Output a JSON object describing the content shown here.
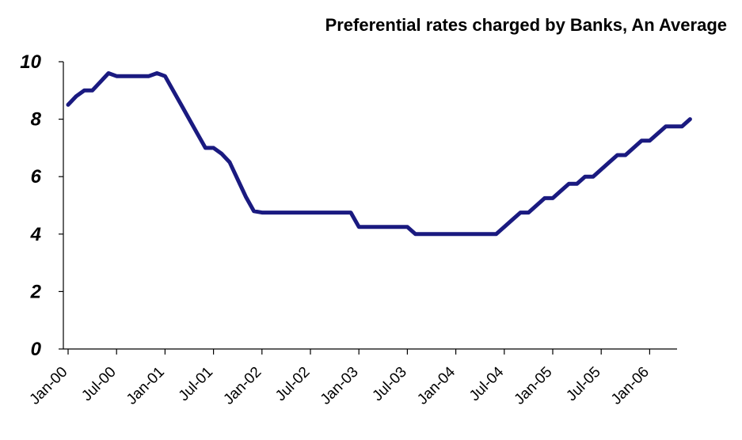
{
  "chart_data": {
    "type": "line",
    "title": "Preferential rates charged by Banks, An Average",
    "xlabel": "",
    "ylabel": "",
    "ylim": [
      0,
      10
    ],
    "y_ticks": [
      "0",
      "2",
      "4",
      "6",
      "8",
      "10"
    ],
    "x_tick_labels": [
      "Jan-00",
      "Jul-00",
      "Jan-01",
      "Jul-01",
      "Jan-02",
      "Jul-02",
      "Jan-03",
      "Jul-03",
      "Jan-04",
      "Jul-04",
      "Jan-05",
      "Jul-05",
      "Jan-06"
    ],
    "grid": false,
    "legend": "none",
    "line_color": "#1a1a80",
    "series": [
      {
        "x": [
          "2000-01",
          "2000-02",
          "2000-03",
          "2000-04",
          "2000-05",
          "2000-06",
          "2000-07",
          "2000-08",
          "2000-09",
          "2000-10",
          "2000-11",
          "2000-12",
          "2001-01",
          "2001-02",
          "2001-03",
          "2001-04",
          "2001-05",
          "2001-06",
          "2001-07",
          "2001-08",
          "2001-09",
          "2001-10",
          "2001-11",
          "2001-12",
          "2002-01",
          "2002-02",
          "2002-03",
          "2002-04",
          "2002-05",
          "2002-06",
          "2002-07",
          "2002-08",
          "2002-09",
          "2002-10",
          "2002-11",
          "2002-12",
          "2003-01",
          "2003-02",
          "2003-03",
          "2003-04",
          "2003-05",
          "2003-06",
          "2003-07",
          "2003-08",
          "2003-09",
          "2003-10",
          "2003-11",
          "2003-12",
          "2004-01",
          "2004-02",
          "2004-03",
          "2004-04",
          "2004-05",
          "2004-06",
          "2004-07",
          "2004-08",
          "2004-09",
          "2004-10",
          "2004-11",
          "2004-12",
          "2005-01",
          "2005-02",
          "2005-03",
          "2005-04",
          "2005-05",
          "2005-06",
          "2005-07",
          "2005-08",
          "2005-09",
          "2005-10",
          "2005-11",
          "2005-12",
          "2006-01",
          "2006-02",
          "2006-03",
          "2006-04",
          "2006-05",
          "2006-06"
        ],
        "values": [
          8.5,
          8.8,
          9.0,
          9.0,
          9.3,
          9.6,
          9.5,
          9.5,
          9.5,
          9.5,
          9.5,
          9.6,
          9.5,
          9.0,
          8.5,
          8.0,
          7.5,
          7.0,
          7.0,
          6.8,
          6.5,
          5.9,
          5.3,
          4.8,
          4.75,
          4.75,
          4.75,
          4.75,
          4.75,
          4.75,
          4.75,
          4.75,
          4.75,
          4.75,
          4.75,
          4.75,
          4.25,
          4.25,
          4.25,
          4.25,
          4.25,
          4.25,
          4.25,
          4.0,
          4.0,
          4.0,
          4.0,
          4.0,
          4.0,
          4.0,
          4.0,
          4.0,
          4.0,
          4.0,
          4.25,
          4.5,
          4.75,
          4.75,
          5.0,
          5.25,
          5.25,
          5.5,
          5.75,
          5.75,
          6.0,
          6.0,
          6.25,
          6.5,
          6.75,
          6.75,
          7.0,
          7.25,
          7.25,
          7.5,
          7.75,
          7.75,
          7.75,
          8.0
        ]
      }
    ]
  }
}
